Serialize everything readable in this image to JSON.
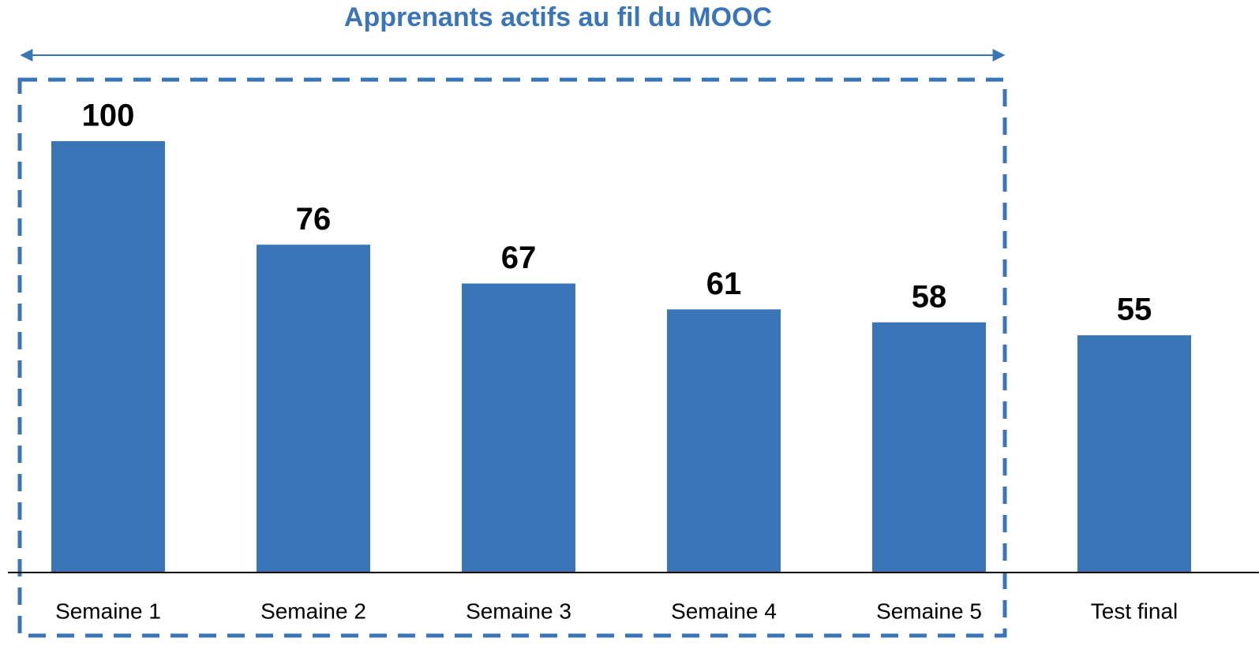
{
  "chart_data": {
    "type": "bar",
    "title": "Apprenants actifs au fil du MOOC",
    "categories": [
      "Semaine 1",
      "Semaine 2",
      "Semaine 3",
      "Semaine 4",
      "Semaine 5",
      "Test final"
    ],
    "values": [
      100,
      76,
      67,
      61,
      58,
      55
    ],
    "color": "#3a75b8",
    "ylim": [
      0,
      100
    ]
  }
}
